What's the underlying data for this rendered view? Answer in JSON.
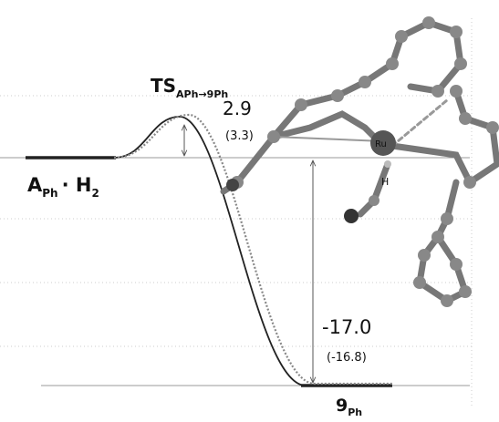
{
  "states": [
    {
      "label": "A",
      "subscript": "Ph",
      "suffix": "· H",
      "suffix_subscript": "2"
    },
    {
      "label": "TS",
      "subscript": "APh→9Ph"
    },
    {
      "label": "9",
      "subscript": "Ph"
    }
  ],
  "energies": [
    {
      "value": "2.9",
      "alt": "(3.3)"
    },
    {
      "value": "-17.0",
      "alt": "(-16.8)"
    }
  ],
  "molecule": {
    "atoms": [
      "Ru",
      "H"
    ]
  }
}
